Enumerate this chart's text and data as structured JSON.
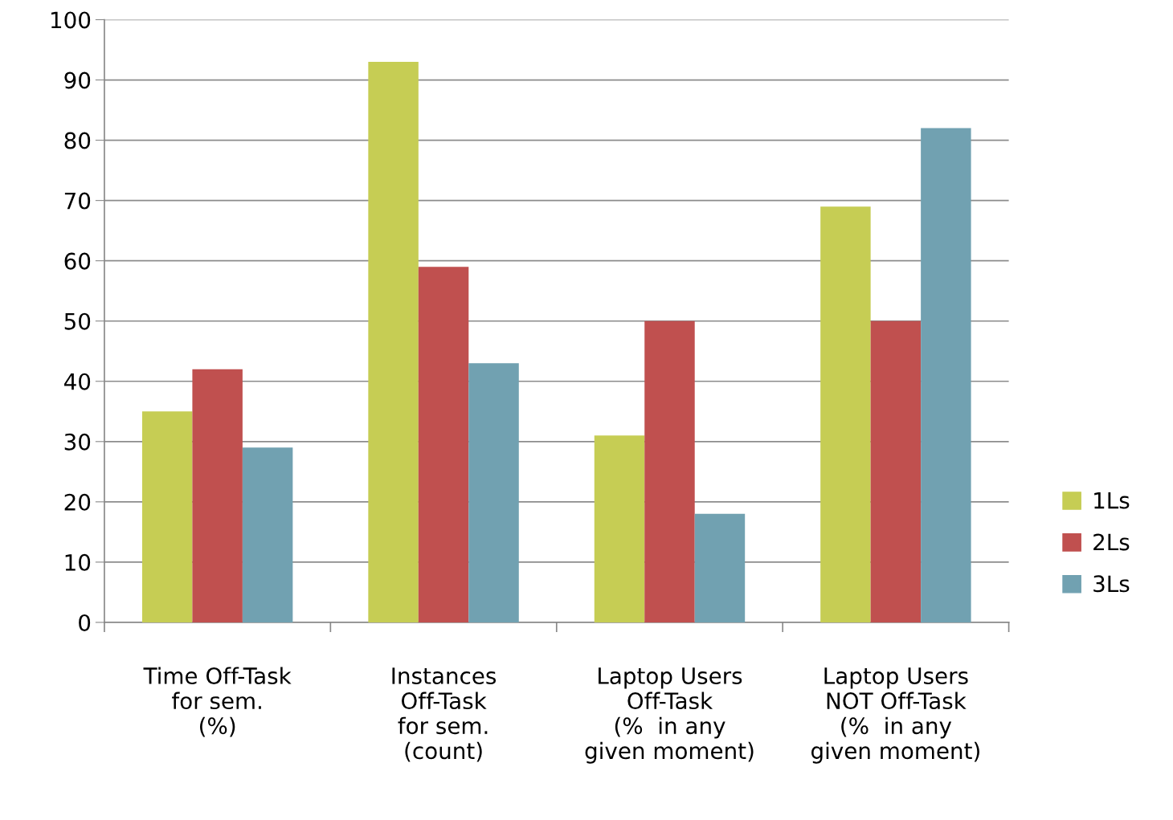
{
  "chart_data": {
    "type": "bar",
    "categories": [
      "Time Off-Task\nfor sem.\n(%)",
      "Instances\nOff-Task\nfor sem.\n(count)",
      "Laptop Users\nOff-Task\n(%  in any\ngiven moment)",
      "Laptop Users\nNOT Off-Task\n(%  in any\ngiven moment)"
    ],
    "series": [
      {
        "name": "1Ls",
        "color": "#c6cd54",
        "values": [
          35,
          93,
          31,
          69
        ]
      },
      {
        "name": "2Ls",
        "color": "#c0504f",
        "values": [
          42,
          59,
          50,
          50
        ]
      },
      {
        "name": "3Ls",
        "color": "#71a1b1",
        "values": [
          29,
          43,
          18,
          82
        ]
      }
    ],
    "ylim": [
      0,
      100
    ],
    "yticks": [
      0,
      10,
      20,
      30,
      40,
      50,
      60,
      70,
      80,
      90,
      100
    ],
    "grid": "y",
    "legend": "right"
  }
}
